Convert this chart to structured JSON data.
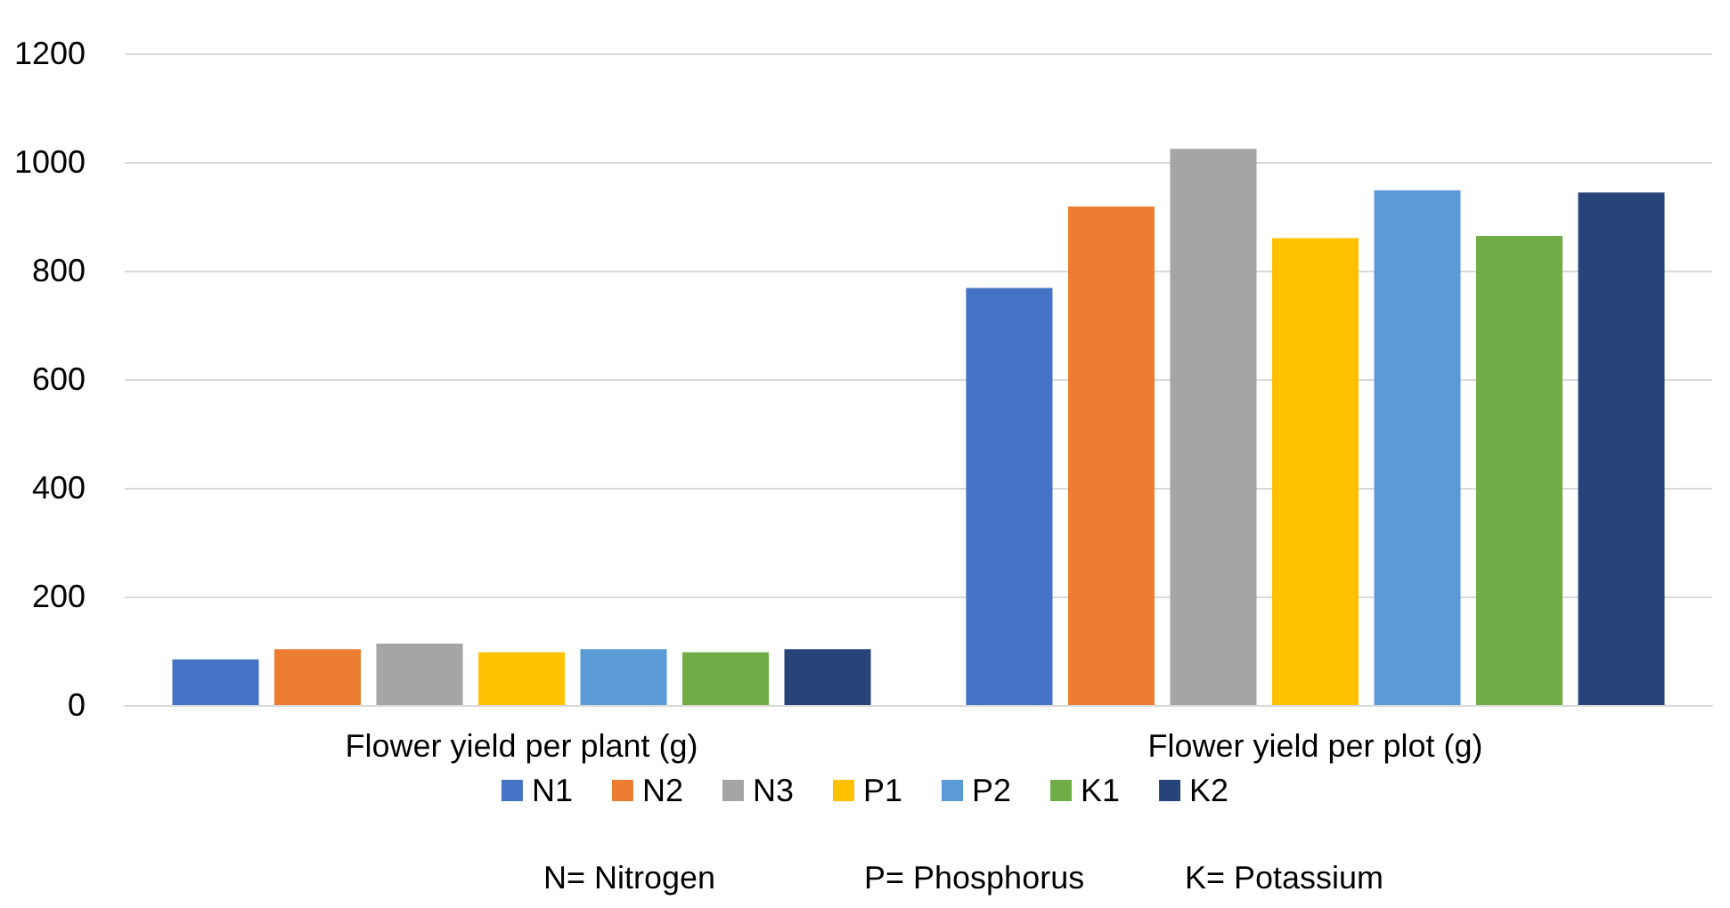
{
  "chart_data": {
    "type": "bar",
    "categories": [
      "Flower yield per plant (g)",
      "Flower yield per plot (g)"
    ],
    "series": [
      {
        "name": "N1",
        "color": "#4472c4",
        "values": [
          84,
          768
        ]
      },
      {
        "name": "N2",
        "color": "#ed7d31",
        "values": [
          103,
          918
        ]
      },
      {
        "name": "N3",
        "color": "#a5a5a5",
        "values": [
          113,
          1024
        ]
      },
      {
        "name": "P1",
        "color": "#ffc000",
        "values": [
          97,
          860
        ]
      },
      {
        "name": "P2",
        "color": "#5b9bd5",
        "values": [
          103,
          948
        ]
      },
      {
        "name": "K1",
        "color": "#70ad47",
        "values": [
          97,
          864
        ]
      },
      {
        "name": "K2",
        "color": "#264478",
        "values": [
          103,
          944
        ]
      }
    ],
    "ylim": [
      0,
      1200
    ],
    "yticks": [
      0,
      200,
      400,
      600,
      800,
      1000,
      1200
    ],
    "grid": "y",
    "legend": "bottom",
    "annotations": [
      "N= Nitrogen",
      "P= Phosphorus",
      "K= Potassium"
    ]
  }
}
